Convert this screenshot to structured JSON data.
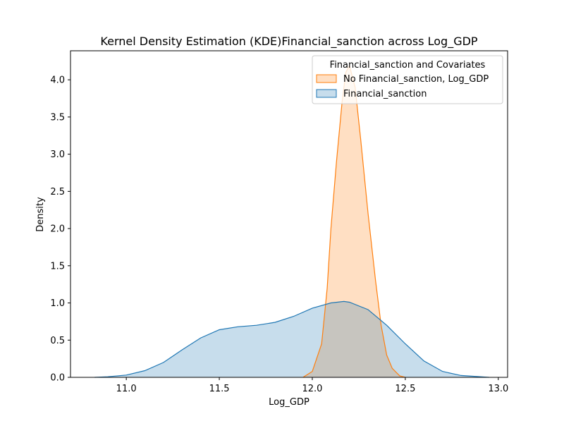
{
  "chart_data": {
    "type": "area",
    "title": "Kernel Density Estimation (KDE)Financial_sanction across Log_GDP",
    "xlabel": "Log_GDP",
    "ylabel": "Density",
    "xlim": [
      10.7,
      13.05
    ],
    "ylim": [
      0,
      4.39
    ],
    "xticks": [
      11.0,
      11.5,
      12.0,
      12.5,
      13.0
    ],
    "xtick_labels": [
      "11.0",
      "11.5",
      "12.0",
      "12.5",
      "13.0"
    ],
    "yticks": [
      0.0,
      0.5,
      1.0,
      1.5,
      2.0,
      2.5,
      3.0,
      3.5,
      4.0
    ],
    "ytick_labels": [
      "0.0",
      "0.5",
      "1.0",
      "1.5",
      "2.0",
      "2.5",
      "3.0",
      "3.5",
      "4.0"
    ],
    "grid": false,
    "legend": {
      "title": "Financial_sanction and Covariates",
      "placement": "top-right"
    },
    "series": [
      {
        "name": "No Financial_sanction, Log_GDP",
        "color": "#ff7f0e",
        "fill_alpha": 0.25,
        "x": [
          11.95,
          12.0,
          12.05,
          12.08,
          12.1,
          12.13,
          12.16,
          12.18,
          12.2,
          12.23,
          12.26,
          12.3,
          12.34,
          12.37,
          12.4,
          12.43,
          12.47,
          12.5
        ],
        "values": [
          0.0,
          0.08,
          0.45,
          1.2,
          2.0,
          2.9,
          3.7,
          4.1,
          4.19,
          3.9,
          3.2,
          2.2,
          1.3,
          0.7,
          0.3,
          0.12,
          0.02,
          0.0
        ]
      },
      {
        "name": "Financial_sanction",
        "color": "#1f77b4",
        "fill_alpha": 0.25,
        "x": [
          10.83,
          10.9,
          11.0,
          11.1,
          11.2,
          11.3,
          11.4,
          11.5,
          11.6,
          11.7,
          11.8,
          11.9,
          12.0,
          12.1,
          12.17,
          12.2,
          12.3,
          12.4,
          12.5,
          12.6,
          12.7,
          12.8,
          12.95
        ],
        "values": [
          0.0,
          0.008,
          0.03,
          0.09,
          0.2,
          0.37,
          0.53,
          0.64,
          0.68,
          0.7,
          0.74,
          0.82,
          0.93,
          1.0,
          1.02,
          1.01,
          0.91,
          0.7,
          0.45,
          0.22,
          0.08,
          0.025,
          0.0
        ]
      }
    ]
  }
}
